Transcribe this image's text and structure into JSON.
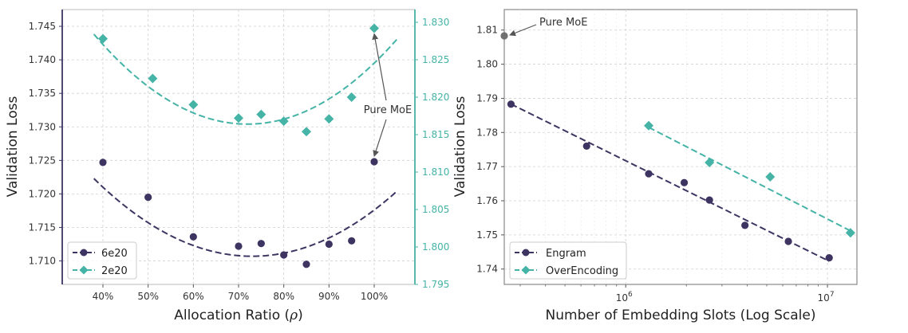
{
  "colors": {
    "series_dark": "#3d3461",
    "series_teal": "#45b3a6",
    "pure_moe_marker": "#707070",
    "frame": "#555555"
  },
  "chart_data": [
    {
      "type": "scatter",
      "title": "",
      "xlabel": "Allocation Ratio (ρ)",
      "ylabel": "Validation Loss",
      "xlim": [
        0.31,
        1.09
      ],
      "x_ticks": [
        0.4,
        0.5,
        0.6,
        0.7,
        0.8,
        0.9,
        1.0
      ],
      "x_tick_labels": [
        "40%",
        "50%",
        "60%",
        "70%",
        "80%",
        "90%",
        "100%"
      ],
      "y_left": {
        "lim": [
          1.7065,
          1.7475
        ],
        "ticks": [
          "1.710",
          "1.715",
          "1.720",
          "1.725",
          "1.730",
          "1.735",
          "1.740",
          "1.745"
        ]
      },
      "y_right": {
        "lim": [
          1.795,
          1.8317
        ],
        "ticks": [
          "1.795",
          "1.800",
          "1.805",
          "1.810",
          "1.815",
          "1.820",
          "1.825",
          "1.830"
        ]
      },
      "grid": true,
      "legend_position": "lower-left",
      "series": [
        {
          "name": "6e20",
          "axis": "left",
          "marker": "circle",
          "x": [
            0.4,
            0.5,
            0.6,
            0.7,
            0.75,
            0.8,
            0.85,
            0.9,
            0.95,
            1.0
          ],
          "y": [
            1.7247,
            1.7195,
            1.7136,
            1.7122,
            1.7126,
            1.7109,
            1.7095,
            1.7125,
            1.713,
            1.7248
          ],
          "fit": {
            "x_range": [
              0.38,
              1.05
            ],
            "quadratic": [
              1.7107,
              0.73,
              0.0946
            ]
          }
        },
        {
          "name": "2e20",
          "axis": "right",
          "marker": "diamond",
          "x": [
            0.4,
            0.51,
            0.6,
            0.7,
            0.75,
            0.8,
            0.85,
            0.9,
            0.95,
            1.0
          ],
          "y": [
            1.8278,
            1.8225,
            1.819,
            1.8172,
            1.8177,
            1.8168,
            1.8154,
            1.8171,
            1.82,
            1.8292
          ],
          "fit": {
            "x_range": [
              0.38,
              1.05
            ],
            "quadratic": [
              1.8164,
              0.72,
              0.1039
            ]
          }
        }
      ],
      "annotations": [
        {
          "text": "Pure MoE",
          "targets": [
            [
              1.0,
              1.8292,
              "right"
            ],
            [
              1.0,
              1.7248,
              "left"
            ]
          ]
        }
      ]
    },
    {
      "type": "scatter",
      "title": "",
      "xlabel": "Number of Embedding Slots (Log Scale)",
      "ylabel": "Validation Loss",
      "x_scale": "log",
      "xlim": [
        250000,
        14000000
      ],
      "x_ticks": [
        1000000,
        10000000
      ],
      "x_tick_labels": [
        "10",
        "10"
      ],
      "x_tick_exponents": [
        "6",
        "7"
      ],
      "ylim": [
        1.7355,
        1.816
      ],
      "y_ticks": [
        "1.74",
        "1.75",
        "1.76",
        "1.77",
        "1.78",
        "1.79",
        "1.80",
        "1.81"
      ],
      "grid": true,
      "legend_position": "lower-left",
      "series": [
        {
          "name": "Engram",
          "marker": "circle",
          "x": [
            270000,
            640000,
            1300000,
            1950000,
            2600000,
            3900000,
            6400000,
            10200000
          ],
          "y": [
            1.7883,
            1.776,
            1.7679,
            1.7653,
            1.7602,
            1.7528,
            1.7481,
            1.7433
          ],
          "fit": {
            "x": [
              270000,
              10200000
            ],
            "y": [
              1.7883,
              1.7423
            ]
          }
        },
        {
          "name": "OverEncoding",
          "marker": "diamond",
          "x": [
            1300000,
            2600000,
            5200000,
            13000000
          ],
          "y": [
            1.782,
            1.7712,
            1.767,
            1.7506
          ],
          "fit": {
            "x": [
              1300000,
              13000000
            ],
            "y": [
              1.7815,
              1.7512
            ]
          }
        }
      ],
      "annotations": [
        {
          "text": "Pure MoE",
          "point": [
            250000,
            1.8083
          ]
        }
      ]
    }
  ]
}
